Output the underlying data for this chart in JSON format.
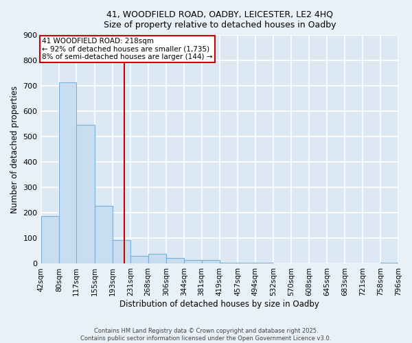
{
  "title_line1": "41, WOODFIELD ROAD, OADBY, LEICESTER, LE2 4HQ",
  "title_line2": "Size of property relative to detached houses in Oadby",
  "xlabel": "Distribution of detached houses by size in Oadby",
  "ylabel": "Number of detached properties",
  "bar_color": "#c8ddf0",
  "bar_edge_color": "#7bafd4",
  "background_color": "#dde8f5",
  "fig_background_color": "#e8f0f8",
  "grid_color": "#ffffff",
  "bins": [
    42,
    80,
    117,
    155,
    193,
    231,
    268,
    306,
    344,
    381,
    419,
    457,
    494,
    532,
    570,
    608,
    645,
    683,
    721,
    758,
    796
  ],
  "counts": [
    188,
    713,
    547,
    228,
    92,
    30,
    38,
    24,
    16,
    16,
    4,
    5,
    4,
    0,
    0,
    0,
    0,
    0,
    0,
    4
  ],
  "property_size": 218,
  "vline_color": "#cc0000",
  "annotation_line1": "41 WOODFIELD ROAD: 218sqm",
  "annotation_line2": "← 92% of detached houses are smaller (1,735)",
  "annotation_line3": "8% of semi-detached houses are larger (144) →",
  "annotation_box_color": "#ffffff",
  "annotation_box_edge": "#cc0000",
  "ylim": [
    0,
    900
  ],
  "yticks": [
    0,
    100,
    200,
    300,
    400,
    500,
    600,
    700,
    800,
    900
  ],
  "footer_line1": "Contains HM Land Registry data © Crown copyright and database right 2025.",
  "footer_line2": "Contains public sector information licensed under the Open Government Licence v3.0.",
  "tick_labels": [
    "42sqm",
    "80sqm",
    "117sqm",
    "155sqm",
    "193sqm",
    "231sqm",
    "268sqm",
    "306sqm",
    "344sqm",
    "381sqm",
    "419sqm",
    "457sqm",
    "494sqm",
    "532sqm",
    "570sqm",
    "608sqm",
    "645sqm",
    "683sqm",
    "721sqm",
    "758sqm",
    "796sqm"
  ]
}
